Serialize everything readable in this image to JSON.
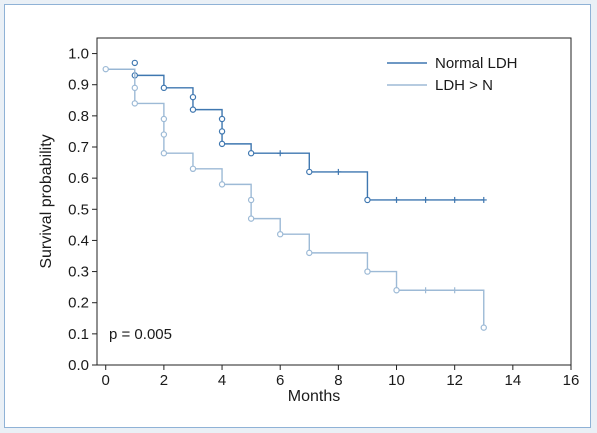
{
  "chart_data": {
    "type": "line",
    "subtype": "kaplan-meier step",
    "title": "",
    "xlabel": "Months",
    "ylabel": "Survival probability",
    "xlim": [
      -0.3,
      16
    ],
    "ylim": [
      0,
      1.05
    ],
    "xticks": [
      0,
      2,
      4,
      6,
      8,
      10,
      12,
      14,
      16
    ],
    "yticks": [
      0.0,
      0.1,
      0.2,
      0.3,
      0.4,
      0.5,
      0.6,
      0.7,
      0.8,
      0.9,
      1.0
    ],
    "grid": false,
    "legend_position": "top-right",
    "annotation": "p = 0.005",
    "series": [
      {
        "name": "Normal LDH",
        "color": "#3f77b0",
        "steps": [
          [
            0,
            0.95
          ],
          [
            1,
            0.93
          ],
          [
            2,
            0.89
          ],
          [
            3,
            0.82
          ],
          [
            4,
            0.71
          ],
          [
            5,
            0.68
          ],
          [
            7,
            0.62
          ],
          [
            9,
            0.53
          ],
          [
            13,
            0.53
          ]
        ],
        "event_markers": [
          [
            1,
            0.97
          ],
          [
            1,
            0.93
          ],
          [
            2,
            0.89
          ],
          [
            3,
            0.86
          ],
          [
            3,
            0.82
          ],
          [
            4,
            0.79
          ],
          [
            4,
            0.75
          ],
          [
            4,
            0.71
          ],
          [
            5,
            0.68
          ],
          [
            7,
            0.62
          ],
          [
            9,
            0.53
          ]
        ],
        "censor_marks": [
          [
            6,
            0.68
          ],
          [
            8,
            0.62
          ],
          [
            10,
            0.53
          ],
          [
            11,
            0.53
          ],
          [
            12,
            0.53
          ],
          [
            13,
            0.53
          ]
        ]
      },
      {
        "name": "LDH > N",
        "color": "#9dbad6",
        "steps": [
          [
            0,
            0.95
          ],
          [
            1,
            0.84
          ],
          [
            2,
            0.68
          ],
          [
            3,
            0.63
          ],
          [
            4,
            0.58
          ],
          [
            5,
            0.47
          ],
          [
            6,
            0.42
          ],
          [
            7,
            0.36
          ],
          [
            9,
            0.3
          ],
          [
            10,
            0.24
          ],
          [
            13,
            0.12
          ]
        ],
        "event_markers": [
          [
            0,
            0.95
          ],
          [
            1,
            0.89
          ],
          [
            1,
            0.84
          ],
          [
            2,
            0.79
          ],
          [
            2,
            0.74
          ],
          [
            2,
            0.68
          ],
          [
            3,
            0.63
          ],
          [
            4,
            0.58
          ],
          [
            5,
            0.53
          ],
          [
            5,
            0.47
          ],
          [
            6,
            0.42
          ],
          [
            7,
            0.36
          ],
          [
            9,
            0.3
          ],
          [
            10,
            0.24
          ],
          [
            13,
            0.12
          ]
        ],
        "censor_marks": [
          [
            11,
            0.24
          ],
          [
            12,
            0.24
          ]
        ]
      }
    ]
  }
}
